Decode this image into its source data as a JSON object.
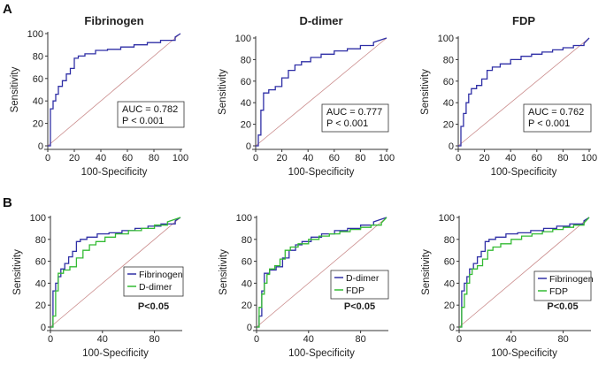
{
  "figure": {
    "panel_labels": [
      "A",
      "B"
    ]
  },
  "colors": {
    "blue": "#2f2fa6",
    "green": "#33bb33",
    "diag": "#c98a8a",
    "axis": "#333333"
  },
  "chart_data": [
    {
      "type": "line",
      "panel": "A",
      "title": "Fibrinogen",
      "xlabel": "100-Specificity",
      "ylabel": "Sensitivity",
      "xlim": [
        0,
        100
      ],
      "ylim": [
        0,
        100
      ],
      "xticks": [
        0,
        20,
        40,
        60,
        80,
        100
      ],
      "yticks": [
        0,
        20,
        40,
        60,
        80,
        100
      ],
      "auc_text": "AUC = 0.782",
      "p_text": "P < 0.001",
      "series": [
        {
          "name": "Fibrinogen",
          "color": "blue",
          "x": [
            0,
            2,
            2,
            4,
            4,
            6,
            6,
            8,
            8,
            11,
            11,
            14,
            14,
            17,
            17,
            20,
            20,
            23,
            23,
            28,
            28,
            36,
            36,
            45,
            45,
            55,
            55,
            65,
            65,
            75,
            75,
            85,
            85,
            96,
            96,
            100
          ],
          "y": [
            0,
            0,
            33,
            33,
            40,
            40,
            46,
            46,
            53,
            53,
            58,
            58,
            64,
            64,
            69,
            69,
            78,
            78,
            80,
            80,
            82,
            82,
            85,
            85,
            86,
            86,
            88,
            88,
            90,
            90,
            92,
            92,
            94,
            94,
            97,
            100
          ]
        }
      ]
    },
    {
      "type": "line",
      "panel": "A",
      "title": "D-dimer",
      "xlabel": "100-Specificity",
      "ylabel": "Sensitivity",
      "xlim": [
        0,
        100
      ],
      "ylim": [
        0,
        100
      ],
      "xticks": [
        0,
        20,
        40,
        60,
        80,
        100
      ],
      "yticks": [
        0,
        20,
        40,
        60,
        80,
        100
      ],
      "auc_text": "AUC = 0.777",
      "p_text": "P < 0.001",
      "series": [
        {
          "name": "D-dimer",
          "color": "blue",
          "x": [
            0,
            2,
            2,
            4,
            4,
            6,
            6,
            10,
            10,
            15,
            15,
            20,
            20,
            25,
            25,
            30,
            30,
            35,
            35,
            42,
            42,
            50,
            50,
            60,
            60,
            70,
            70,
            80,
            80,
            90,
            90,
            100
          ],
          "y": [
            0,
            0,
            10,
            10,
            33,
            33,
            49,
            49,
            52,
            52,
            55,
            55,
            63,
            63,
            70,
            70,
            75,
            75,
            78,
            78,
            82,
            82,
            85,
            85,
            88,
            88,
            90,
            90,
            93,
            93,
            96,
            100
          ]
        }
      ]
    },
    {
      "type": "line",
      "panel": "A",
      "title": "FDP",
      "xlabel": "100-Specificity",
      "ylabel": "Sensitivity",
      "xlim": [
        0,
        100
      ],
      "ylim": [
        0,
        100
      ],
      "xticks": [
        0,
        20,
        40,
        60,
        80,
        100
      ],
      "yticks": [
        0,
        20,
        40,
        60,
        80,
        100
      ],
      "auc_text": "AUC = 0.762",
      "p_text": "P < 0.001",
      "series": [
        {
          "name": "FDP",
          "color": "blue",
          "x": [
            0,
            2,
            2,
            4,
            4,
            6,
            6,
            8,
            8,
            10,
            10,
            14,
            14,
            18,
            18,
            22,
            22,
            26,
            26,
            32,
            32,
            40,
            40,
            48,
            48,
            56,
            56,
            64,
            64,
            72,
            72,
            80,
            80,
            88,
            88,
            96,
            96,
            100
          ],
          "y": [
            0,
            0,
            18,
            18,
            30,
            30,
            40,
            40,
            48,
            48,
            53,
            53,
            56,
            56,
            62,
            62,
            70,
            70,
            73,
            73,
            76,
            76,
            80,
            80,
            83,
            83,
            85,
            85,
            87,
            87,
            89,
            89,
            91,
            91,
            93,
            93,
            95,
            100
          ]
        }
      ]
    },
    {
      "type": "line",
      "panel": "B",
      "title": "",
      "xlabel": "100-Specificity",
      "ylabel": "Sensitivity",
      "xlim": [
        0,
        100
      ],
      "ylim": [
        0,
        100
      ],
      "xticks": [
        0,
        40,
        80
      ],
      "yticks": [
        0,
        20,
        40,
        60,
        80,
        100
      ],
      "p_label": "P<0.05",
      "series": [
        {
          "name": "Fibrinogen",
          "color": "blue",
          "x": [
            0,
            2,
            2,
            4,
            4,
            6,
            6,
            8,
            8,
            11,
            11,
            14,
            14,
            17,
            17,
            20,
            20,
            23,
            23,
            28,
            28,
            36,
            36,
            45,
            45,
            55,
            55,
            65,
            65,
            75,
            75,
            85,
            85,
            96,
            96,
            100
          ],
          "y": [
            0,
            0,
            33,
            33,
            40,
            40,
            46,
            46,
            53,
            53,
            58,
            58,
            64,
            64,
            69,
            69,
            78,
            78,
            80,
            80,
            82,
            82,
            85,
            85,
            86,
            86,
            88,
            88,
            90,
            90,
            92,
            92,
            94,
            94,
            97,
            100
          ]
        },
        {
          "name": "D-dimer",
          "color": "green",
          "x": [
            0,
            2,
            2,
            4,
            4,
            6,
            6,
            10,
            10,
            15,
            15,
            20,
            20,
            25,
            25,
            30,
            30,
            35,
            35,
            42,
            42,
            50,
            50,
            60,
            60,
            70,
            70,
            80,
            80,
            90,
            90,
            100
          ],
          "y": [
            0,
            0,
            10,
            10,
            33,
            33,
            49,
            49,
            52,
            52,
            55,
            55,
            63,
            63,
            70,
            70,
            75,
            75,
            78,
            78,
            82,
            82,
            85,
            85,
            88,
            88,
            90,
            90,
            93,
            93,
            96,
            100
          ]
        }
      ]
    },
    {
      "type": "line",
      "panel": "B",
      "title": "",
      "xlabel": "100-Specificity",
      "ylabel": "Sensitivity",
      "xlim": [
        0,
        100
      ],
      "ylim": [
        0,
        100
      ],
      "xticks": [
        0,
        40,
        80
      ],
      "yticks": [
        0,
        20,
        40,
        60,
        80,
        100
      ],
      "p_label": "P<0.05",
      "series": [
        {
          "name": "D-dimer",
          "color": "blue",
          "x": [
            0,
            2,
            2,
            4,
            4,
            6,
            6,
            10,
            10,
            15,
            15,
            20,
            20,
            25,
            25,
            30,
            30,
            35,
            35,
            42,
            42,
            50,
            50,
            60,
            60,
            70,
            70,
            80,
            80,
            90,
            90,
            100
          ],
          "y": [
            0,
            0,
            10,
            10,
            33,
            33,
            49,
            49,
            52,
            52,
            55,
            55,
            63,
            63,
            70,
            70,
            75,
            75,
            78,
            78,
            82,
            82,
            85,
            85,
            88,
            88,
            90,
            90,
            93,
            93,
            96,
            100
          ]
        },
        {
          "name": "FDP",
          "color": "green",
          "x": [
            0,
            2,
            2,
            4,
            4,
            6,
            6,
            8,
            8,
            10,
            10,
            14,
            14,
            18,
            18,
            22,
            22,
            26,
            26,
            32,
            32,
            40,
            40,
            48,
            48,
            56,
            56,
            64,
            64,
            72,
            72,
            80,
            80,
            88,
            88,
            96,
            96,
            100
          ],
          "y": [
            0,
            0,
            18,
            18,
            30,
            30,
            40,
            40,
            48,
            48,
            53,
            53,
            56,
            56,
            62,
            62,
            70,
            70,
            73,
            73,
            76,
            76,
            80,
            80,
            83,
            83,
            85,
            85,
            87,
            87,
            89,
            89,
            91,
            91,
            93,
            93,
            95,
            100
          ]
        }
      ]
    },
    {
      "type": "line",
      "panel": "B",
      "title": "",
      "xlabel": "100-Specificity",
      "ylabel": "Sensitivity",
      "xlim": [
        0,
        100
      ],
      "ylim": [
        0,
        100
      ],
      "xticks": [
        0,
        40,
        80
      ],
      "yticks": [
        0,
        20,
        40,
        60,
        80,
        100
      ],
      "p_label": "P<0.05",
      "series": [
        {
          "name": "Fibrinogen",
          "color": "blue",
          "x": [
            0,
            2,
            2,
            4,
            4,
            6,
            6,
            8,
            8,
            11,
            11,
            14,
            14,
            17,
            17,
            20,
            20,
            23,
            23,
            28,
            28,
            36,
            36,
            45,
            45,
            55,
            55,
            65,
            65,
            75,
            75,
            85,
            85,
            96,
            96,
            100
          ],
          "y": [
            0,
            0,
            33,
            33,
            40,
            40,
            46,
            46,
            53,
            53,
            58,
            58,
            64,
            64,
            69,
            69,
            78,
            78,
            80,
            80,
            82,
            82,
            85,
            85,
            86,
            86,
            88,
            88,
            90,
            90,
            92,
            92,
            94,
            94,
            97,
            100
          ]
        },
        {
          "name": "FDP",
          "color": "green",
          "x": [
            0,
            2,
            2,
            4,
            4,
            6,
            6,
            8,
            8,
            10,
            10,
            14,
            14,
            18,
            18,
            22,
            22,
            26,
            26,
            32,
            32,
            40,
            40,
            48,
            48,
            56,
            56,
            64,
            64,
            72,
            72,
            80,
            80,
            88,
            88,
            96,
            96,
            100
          ],
          "y": [
            0,
            0,
            18,
            18,
            30,
            30,
            40,
            40,
            48,
            48,
            53,
            53,
            56,
            56,
            62,
            62,
            70,
            70,
            73,
            73,
            76,
            76,
            80,
            80,
            83,
            83,
            85,
            85,
            87,
            87,
            89,
            89,
            91,
            91,
            93,
            93,
            95,
            100
          ]
        }
      ]
    }
  ]
}
